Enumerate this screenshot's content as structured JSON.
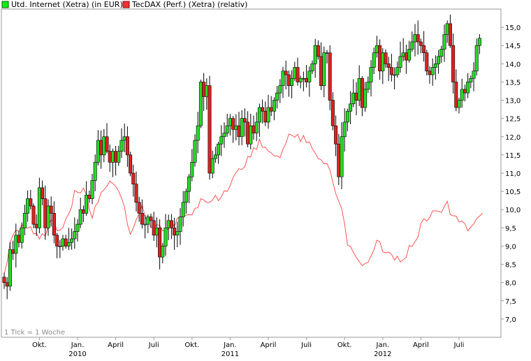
{
  "legend": [
    {
      "label": "Utd. Internet (Xetra) (in EUR)",
      "color": "#11ee11"
    },
    {
      "label": "TecDAX (Perf.) (Xetra) (relativ)",
      "color": "#ee3333"
    }
  ],
  "footnote": "1 Tick = 1 Woche",
  "colors": {
    "up": "#22dd22",
    "down": "#dd2222",
    "line": "#ff4444",
    "wick": "#000000",
    "frame": "#999999"
  },
  "chart_data": {
    "type": "candlestick",
    "ylim": [
      6.5,
      15.5
    ],
    "y_ticks": [
      "7,0",
      "7,5",
      "8,0",
      "8,5",
      "9,0",
      "9,5",
      "10,0",
      "10,5",
      "11,0",
      "11,5",
      "12,0",
      "12,5",
      "13,0",
      "13,5",
      "14,0",
      "14,5",
      "15,0"
    ],
    "x_ticks": [
      {
        "label": "Okt.",
        "year": "",
        "week": 12
      },
      {
        "label": "Jan.",
        "year": "2010",
        "week": 25
      },
      {
        "label": "April",
        "year": "",
        "week": 38
      },
      {
        "label": "Juli",
        "year": "",
        "week": 51
      },
      {
        "label": "Okt.",
        "year": "",
        "week": 64
      },
      {
        "label": "Jan.",
        "year": "2011",
        "week": 77
      },
      {
        "label": "April",
        "year": "",
        "week": 90
      },
      {
        "label": "Juli",
        "year": "",
        "week": 103
      },
      {
        "label": "Okt.",
        "year": "",
        "week": 116
      },
      {
        "label": "Jan.",
        "year": "2012",
        "week": 129
      },
      {
        "label": "April",
        "year": "",
        "week": 142
      },
      {
        "label": "Juli",
        "year": "",
        "week": 155
      }
    ],
    "close": [
      8.0,
      7.9,
      8.9,
      8.8,
      9.3,
      9.1,
      9.5,
      9.9,
      10.3,
      10.1,
      9.6,
      9.5,
      10.6,
      10.3,
      9.5,
      10.1,
      9.9,
      9.3,
      9.0,
      9.0,
      9.2,
      9.0,
      9.1,
      9.2,
      9.4,
      9.6,
      10.0,
      9.9,
      10.4,
      10.3,
      10.8,
      11.3,
      11.9,
      11.5,
      12.0,
      11.6,
      11.3,
      11.6,
      11.3,
      11.6,
      11.9,
      12.0,
      11.5,
      11.0,
      10.7,
      10.2,
      9.9,
      9.6,
      9.6,
      9.8,
      9.7,
      9.3,
      9.5,
      8.7,
      9.0,
      9.5,
      9.7,
      9.5,
      9.3,
      9.4,
      9.8,
      10.2,
      10.5,
      10.9,
      11.3,
      11.9,
      12.3,
      13.5,
      13.1,
      13.4,
      11.0,
      11.4,
      11.5,
      11.8,
      12.0,
      12.1,
      12.3,
      12.5,
      12.2,
      12.3,
      12.0,
      12.5,
      12.4,
      11.8,
      12.3,
      12.1,
      12.4,
      12.8,
      12.7,
      12.4,
      12.8,
      12.7,
      13.0,
      13.2,
      13.4,
      13.8,
      13.7,
      13.4,
      13.6,
      13.9,
      13.5,
      13.6,
      13.6,
      13.5,
      13.8,
      14.0,
      14.5,
      14.2,
      13.4,
      14.3,
      14.3,
      13.0,
      12.3,
      11.8,
      10.9,
      12.0,
      12.4,
      12.7,
      12.9,
      13.2,
      13.0,
      13.6,
      12.8,
      13.3,
      13.5,
      13.9,
      14.3,
      14.5,
      13.8,
      14.3,
      14.0,
      13.9,
      13.7,
      13.7,
      13.9,
      14.2,
      14.3,
      14.1,
      14.4,
      14.6,
      14.8,
      14.6,
      14.5,
      14.3,
      13.8,
      13.7,
      13.9,
      14.0,
      14.2,
      14.4,
      14.8,
      15.1,
      14.5,
      13.5,
      12.8,
      13.0,
      13.3,
      13.2,
      13.5,
      13.6,
      13.8,
      14.5,
      14.7
    ]
  }
}
